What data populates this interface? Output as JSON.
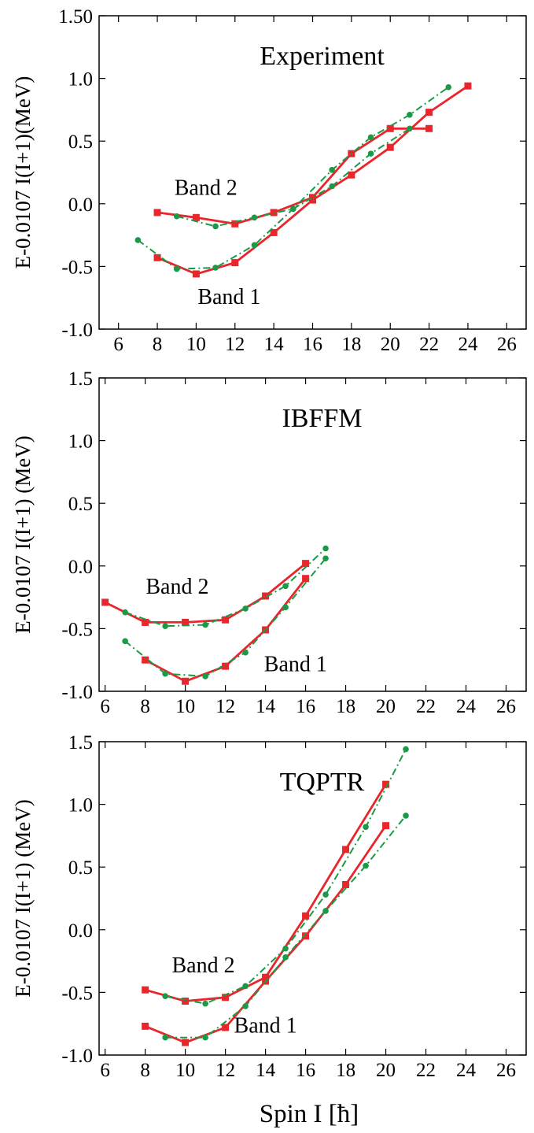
{
  "xlabel": "Spin I [ħ]",
  "chart_data": [
    {
      "type": "line",
      "title": "Experiment",
      "ylabel": "E-0.0107 I(I+1)(MeV)",
      "xlim": [
        5,
        27
      ],
      "ylim": [
        -1.0,
        1.5
      ],
      "xticks": [
        6,
        8,
        10,
        12,
        14,
        16,
        18,
        20,
        22,
        24,
        26
      ],
      "yticks": [
        -1.0,
        -0.5,
        0.0,
        0.5,
        1.0,
        1.5
      ],
      "ytick_labels": [
        "-1.0",
        "-0.5",
        "0.0",
        "0.5",
        "1.0",
        "1.50"
      ],
      "band_labels": [
        {
          "text": "Band 2",
          "x": 10.5,
          "y": 0.07
        },
        {
          "text": "Band 1",
          "x": 11.7,
          "y": -0.8
        }
      ],
      "series": [
        {
          "style": "red-square",
          "color": "#e8262b",
          "x": [
            8,
            10,
            12,
            14,
            16,
            18,
            20,
            22
          ],
          "y": [
            -0.07,
            -0.11,
            -0.16,
            -0.07,
            0.05,
            0.4,
            0.6,
            0.6
          ]
        },
        {
          "style": "red-square",
          "color": "#e8262b",
          "x": [
            8,
            10,
            12,
            14,
            16,
            18,
            20,
            22,
            24
          ],
          "y": [
            -0.43,
            -0.56,
            -0.47,
            -0.23,
            0.03,
            0.23,
            0.45,
            0.73,
            0.94
          ]
        },
        {
          "style": "green-dot-dash",
          "color": "#1a9a46",
          "x": [
            9,
            11,
            13,
            15,
            17,
            19,
            21
          ],
          "y": [
            -0.1,
            -0.18,
            -0.11,
            -0.04,
            0.14,
            0.4,
            0.6
          ]
        },
        {
          "style": "green-dot-dash",
          "color": "#1a9a46",
          "x": [
            7,
            9,
            11,
            13,
            15,
            17,
            19,
            21,
            23
          ],
          "y": [
            -0.29,
            -0.52,
            -0.51,
            -0.33,
            -0.04,
            0.27,
            0.53,
            0.71,
            0.93
          ]
        }
      ]
    },
    {
      "type": "line",
      "title": "IBFFM",
      "ylabel": "E-0.0107 I(I+1) (MeV)",
      "xlim": [
        5.7,
        27
      ],
      "ylim": [
        -1.0,
        1.5
      ],
      "xticks": [
        6,
        8,
        10,
        12,
        14,
        16,
        18,
        20,
        22,
        24,
        26
      ],
      "yticks": [
        -1.0,
        -0.5,
        0.0,
        0.5,
        1.0,
        1.5
      ],
      "ytick_labels": [
        "-1.0",
        "-0.5",
        "0.0",
        "0.5",
        "1.0",
        "1.5"
      ],
      "band_labels": [
        {
          "text": "Band 2",
          "x": 9.6,
          "y": -0.22
        },
        {
          "text": "Band 1",
          "x": 15.5,
          "y": -0.84
        }
      ],
      "series": [
        {
          "style": "red-square",
          "color": "#e8262b",
          "x": [
            6,
            8,
            10,
            12,
            14,
            16
          ],
          "y": [
            -0.29,
            -0.45,
            -0.45,
            -0.43,
            -0.24,
            0.02
          ]
        },
        {
          "style": "red-square",
          "color": "#e8262b",
          "x": [
            8,
            10,
            12,
            14,
            16
          ],
          "y": [
            -0.75,
            -0.92,
            -0.8,
            -0.51,
            -0.1
          ]
        },
        {
          "style": "green-dot-dash",
          "color": "#1a9a46",
          "x": [
            7,
            9,
            11,
            13,
            15,
            17
          ],
          "y": [
            -0.37,
            -0.48,
            -0.47,
            -0.34,
            -0.16,
            0.14
          ]
        },
        {
          "style": "green-dot-dash",
          "color": "#1a9a46",
          "x": [
            7,
            9,
            11,
            13,
            15,
            17
          ],
          "y": [
            -0.6,
            -0.86,
            -0.88,
            -0.69,
            -0.33,
            0.06
          ]
        }
      ]
    },
    {
      "type": "line",
      "title": "TQPTR",
      "ylabel": "E-0.0107 I(I+1) (MeV)",
      "xlim": [
        5.7,
        27
      ],
      "ylim": [
        -1.0,
        1.5
      ],
      "xticks": [
        6,
        8,
        10,
        12,
        14,
        16,
        18,
        20,
        22,
        24,
        26
      ],
      "yticks": [
        -1.0,
        -0.5,
        0.0,
        0.5,
        1.0,
        1.5
      ],
      "ytick_labels": [
        "-1.0",
        "-0.5",
        "0.0",
        "0.5",
        "1.0",
        "1.5"
      ],
      "band_labels": [
        {
          "text": "Band 2",
          "x": 10.9,
          "y": -0.34
        },
        {
          "text": "Band 1",
          "x": 14.0,
          "y": -0.82
        }
      ],
      "series": [
        {
          "style": "red-square",
          "color": "#e8262b",
          "x": [
            8,
            10,
            12,
            14,
            16,
            18,
            20
          ],
          "y": [
            -0.48,
            -0.57,
            -0.54,
            -0.38,
            0.11,
            0.64,
            1.16
          ]
        },
        {
          "style": "red-square",
          "color": "#e8262b",
          "x": [
            8,
            10,
            12,
            14,
            16,
            18,
            20
          ],
          "y": [
            -0.77,
            -0.9,
            -0.78,
            -0.41,
            -0.05,
            0.36,
            0.83
          ]
        },
        {
          "style": "green-dot-dash",
          "color": "#1a9a46",
          "x": [
            9,
            11,
            13,
            15,
            17,
            19,
            21
          ],
          "y": [
            -0.53,
            -0.59,
            -0.45,
            -0.15,
            0.28,
            0.82,
            1.44
          ]
        },
        {
          "style": "green-dot-dash",
          "color": "#1a9a46",
          "x": [
            9,
            11,
            13,
            15,
            17,
            19,
            21
          ],
          "y": [
            -0.86,
            -0.86,
            -0.61,
            -0.22,
            0.15,
            0.51,
            0.91
          ]
        }
      ]
    }
  ]
}
